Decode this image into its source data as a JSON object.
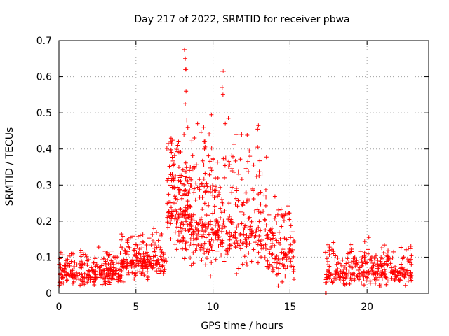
{
  "chart_data": {
    "type": "scatter",
    "title": "Day 217 of 2022, SRMTID for receiver pbwa",
    "xlabel": "GPS time / hours",
    "ylabel": "SRMTID / TECUs",
    "xlim": [
      0,
      24
    ],
    "ylim": [
      0,
      0.7
    ],
    "xticks": [
      0,
      5,
      10,
      15,
      20
    ],
    "yticks": [
      0,
      0.1,
      0.2,
      0.3,
      0.4,
      0.5,
      0.6,
      0.7
    ],
    "xtick_labels": [
      "0",
      "5",
      "10",
      "15",
      "20"
    ],
    "ytick_labels": [
      "0",
      "0.1",
      "0.2",
      "0.3",
      "0.4",
      "0.5",
      "0.6",
      "0.7"
    ],
    "grid": true,
    "marker": "+",
    "color": "#ff0000",
    "series": [
      {
        "name": "SRMTID",
        "segments": [
          {
            "x_range": [
              0.0,
              4.0
            ],
            "center": 0.055,
            "spread": 0.03,
            "n": 260
          },
          {
            "x_range": [
              4.0,
              7.0
            ],
            "center": 0.09,
            "spread": 0.04,
            "n": 220
          },
          {
            "x_range": [
              7.0,
              8.5
            ],
            "center": 0.24,
            "spread": 0.12,
            "n": 180
          },
          {
            "x_range": [
              8.5,
              10.5
            ],
            "center": 0.2,
            "spread": 0.12,
            "n": 200
          },
          {
            "x_range": [
              10.5,
              13.5
            ],
            "center": 0.19,
            "spread": 0.11,
            "n": 200
          },
          {
            "x_range": [
              13.5,
              15.3
            ],
            "center": 0.12,
            "spread": 0.07,
            "n": 120
          },
          {
            "x_range": [
              17.3,
              22.9
            ],
            "center": 0.06,
            "spread": 0.035,
            "n": 320
          }
        ],
        "peaks": [
          {
            "x": 8.15,
            "y": 0.675
          },
          {
            "x": 8.2,
            "y": 0.65
          },
          {
            "x": 8.2,
            "y": 0.62
          },
          {
            "x": 8.25,
            "y": 0.62
          },
          {
            "x": 8.25,
            "y": 0.56
          },
          {
            "x": 8.2,
            "y": 0.525
          },
          {
            "x": 9.9,
            "y": 0.495
          },
          {
            "x": 10.6,
            "y": 0.615
          },
          {
            "x": 10.7,
            "y": 0.615
          },
          {
            "x": 10.6,
            "y": 0.57
          },
          {
            "x": 10.65,
            "y": 0.55
          },
          {
            "x": 11.0,
            "y": 0.485
          },
          {
            "x": 12.95,
            "y": 0.465
          },
          {
            "x": 12.9,
            "y": 0.455
          },
          {
            "x": 12.9,
            "y": 0.405
          },
          {
            "x": 8.3,
            "y": 0.48
          },
          {
            "x": 9.0,
            "y": 0.47
          },
          {
            "x": 10.8,
            "y": 0.47
          },
          {
            "x": 9.4,
            "y": 0.46
          },
          {
            "x": 11.5,
            "y": 0.44
          },
          {
            "x": 17.3,
            "y": 0.0
          },
          {
            "x": 17.35,
            "y": 0.0
          }
        ]
      }
    ]
  }
}
